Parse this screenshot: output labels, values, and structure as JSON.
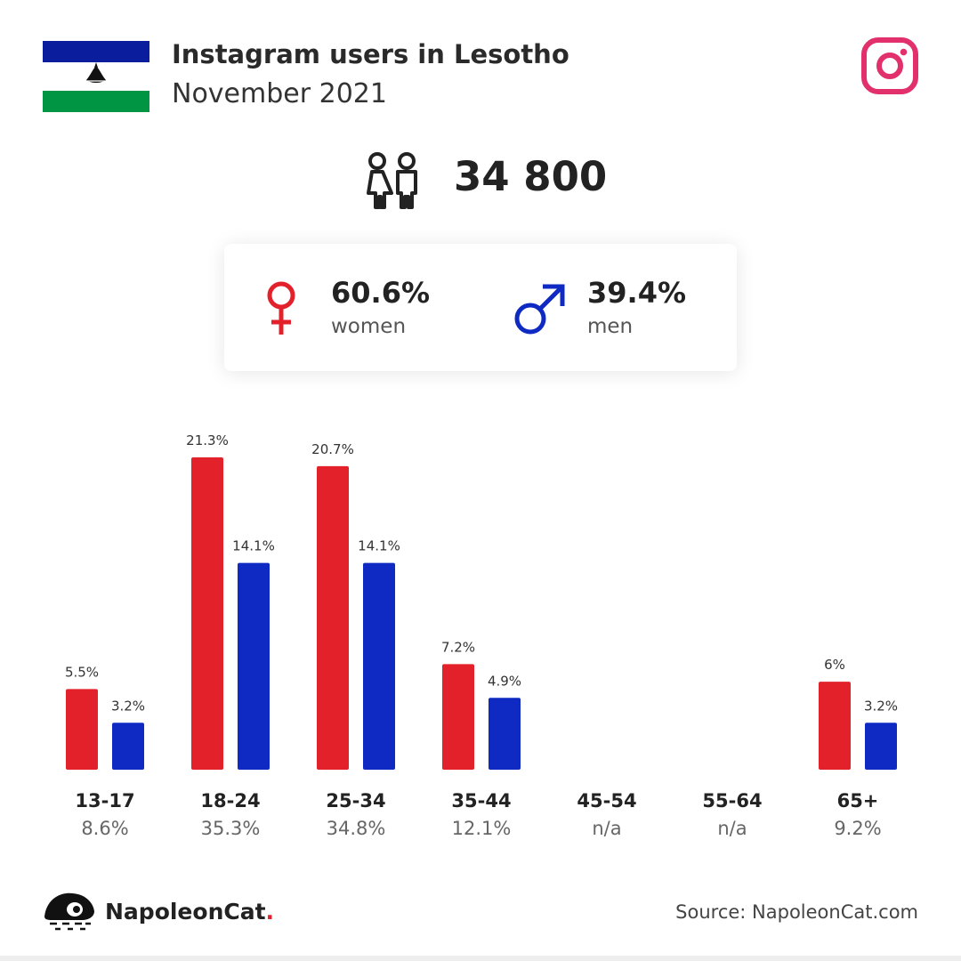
{
  "header": {
    "title": "Instagram users in Lesotho",
    "subtitle": "November 2021"
  },
  "icons": {
    "flag": "lesotho-flag-icon",
    "platform": "instagram-icon",
    "users": "people-icon",
    "female": "female-symbol-icon",
    "male": "male-symbol-icon",
    "brand": "napoleoncat-logo-icon"
  },
  "colors": {
    "women": "#e3212b",
    "men": "#0f2ac2",
    "instagram": "#e1306c",
    "flag_blue": "#0a1d9c",
    "flag_green": "#009543"
  },
  "total": {
    "value": "34 800"
  },
  "gender": {
    "women": {
      "value": "60.6%",
      "label": "women"
    },
    "men": {
      "value": "39.4%",
      "label": "men"
    }
  },
  "chart_data": {
    "type": "bar",
    "categories": [
      "13-17",
      "18-24",
      "25-34",
      "35-44",
      "45-54",
      "55-64",
      "65+"
    ],
    "category_totals": [
      "8.6%",
      "35.3%",
      "34.8%",
      "12.1%",
      "n/a",
      "n/a",
      "9.2%"
    ],
    "series": [
      {
        "name": "women",
        "values": [
          5.5,
          21.3,
          20.7,
          7.2,
          null,
          null,
          6
        ],
        "labels": [
          "5.5%",
          "21.3%",
          "20.7%",
          "7.2%",
          "",
          "",
          "6%"
        ]
      },
      {
        "name": "men",
        "values": [
          3.2,
          14.1,
          14.1,
          4.9,
          null,
          null,
          3.2
        ],
        "labels": [
          "3.2%",
          "14.1%",
          "14.1%",
          "4.9%",
          "",
          "",
          "3.2%"
        ]
      }
    ],
    "title": "",
    "xlabel": "",
    "ylabel": "",
    "ylim": [
      0,
      21.3
    ],
    "grid": false,
    "legend": "none"
  },
  "footer": {
    "brand_name": "NapoleonCat",
    "brand_dot": ".",
    "source": "Source: NapoleonCat.com"
  }
}
